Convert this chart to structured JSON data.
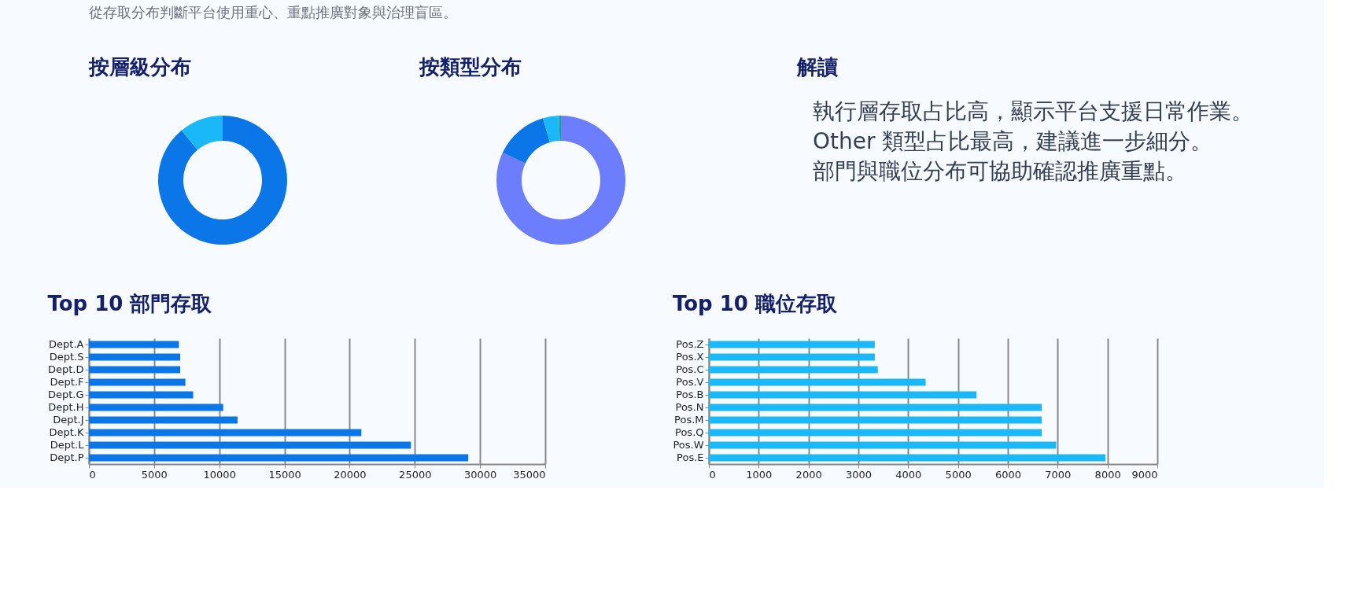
{
  "chart_data": [
    {
      "type": "other",
      "annotations": [
        "從存取分布判斷平台使用重心、重點推廣對象與治理盲區。"
      ]
    },
    {
      "type": "donut",
      "title": "按層級分布",
      "categories": [
        null,
        null
      ],
      "values": [
        89,
        11
      ],
      "colors": [
        "#0b76e8",
        "#1ab8f7"
      ]
    },
    {
      "type": "donut",
      "title": "按類型分布",
      "categories": [
        null,
        null,
        null,
        null
      ],
      "values": [
        82,
        13.5,
        4,
        0.5
      ],
      "colors": [
        "#6c7dfe",
        "#0b76e8",
        "#1ab8f7",
        "#14a88a"
      ]
    },
    {
      "type": "other",
      "title": "解讀",
      "annotations": [
        "執行層存取占比高，顯示平台支援日常作業。",
        "Other 類型占比最高，建議進一步細分。",
        "部門與職位分布可協助確認推廣重點。"
      ]
    },
    {
      "type": "bar",
      "orientation": "horizontal",
      "title": "Top 10 部門存取",
      "categories": [
        "Dept.A",
        "Dept.S",
        "Dept.D",
        "Dept.F",
        "Dept.G",
        "Dept.H",
        "Dept.J",
        "Dept.K",
        "Dept.L",
        "Dept.P"
      ],
      "values": [
        6900,
        7000,
        7000,
        7400,
        8000,
        10300,
        11400,
        20900,
        24700,
        29100
      ],
      "color": "#0b76e8",
      "xlim": [
        0,
        35000
      ],
      "xticks": [
        0,
        5000,
        10000,
        15000,
        20000,
        25000,
        30000,
        35000
      ],
      "grid": "x",
      "legend": false
    },
    {
      "type": "bar",
      "orientation": "horizontal",
      "title": "Top 10 職位存取",
      "categories": [
        "Pos.Z",
        "Pos.X",
        "Pos.C",
        "Pos.V",
        "Pos.B",
        "Pos.N",
        "Pos.M",
        "Pos.Q",
        "Pos.W",
        "Pos.E"
      ],
      "values": [
        3330,
        3330,
        3390,
        4350,
        5370,
        6680,
        6680,
        6680,
        6970,
        7960
      ],
      "color": "#1ab8f7",
      "xlim": [
        0,
        9000
      ],
      "xticks": [
        0,
        1000,
        2000,
        3000,
        4000,
        5000,
        6000,
        7000,
        8000,
        9000
      ],
      "grid": "x",
      "legend": false
    }
  ]
}
